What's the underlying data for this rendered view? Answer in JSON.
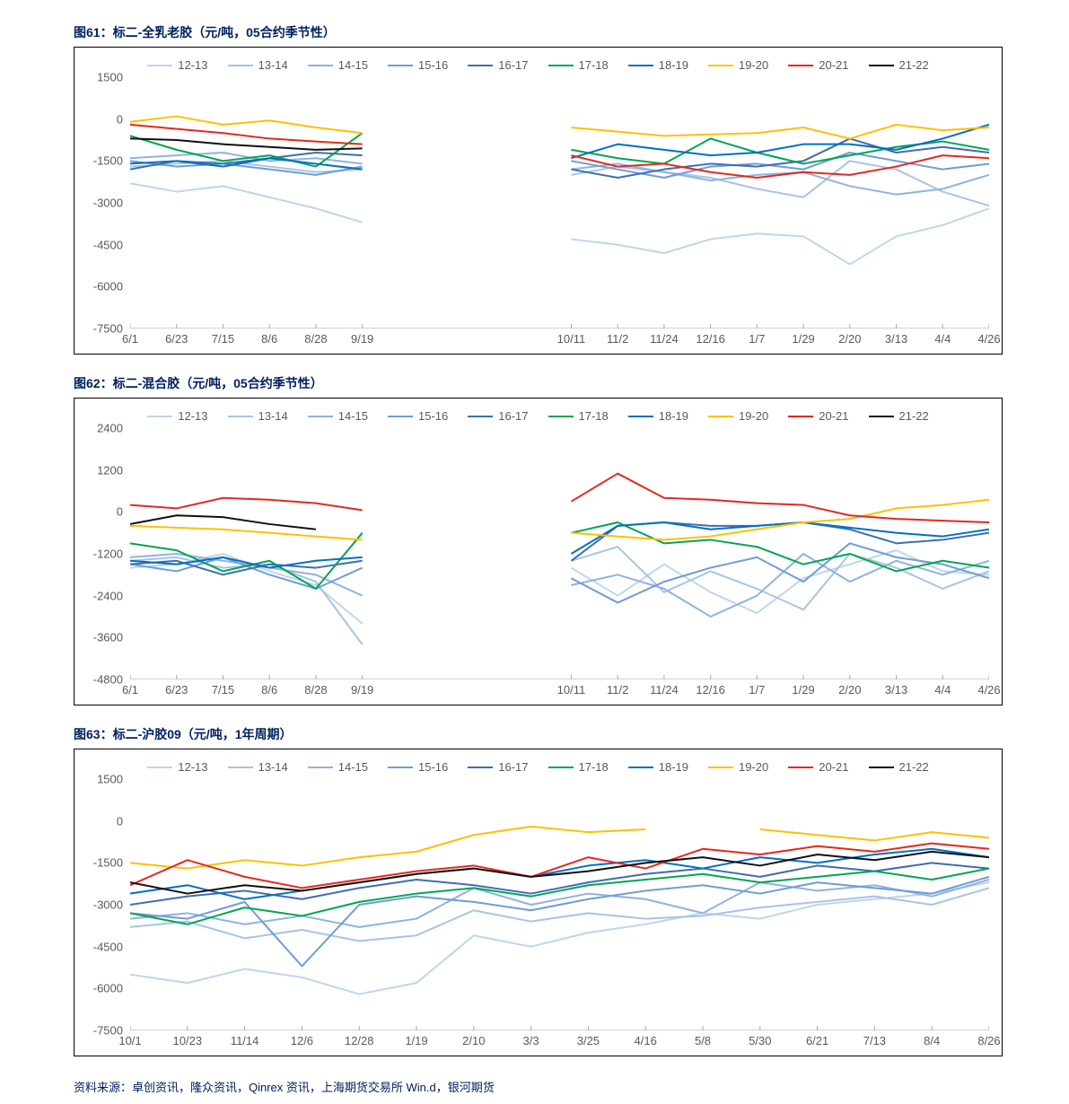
{
  "source_text": "资料来源：卓创资讯，隆众资讯，Qinrex 资讯，上海期货交易所 Win.d，银河期货",
  "legend_series": [
    {
      "label": "12-13",
      "color": "#bfd5ed"
    },
    {
      "label": "13-14",
      "color": "#a7c4e6"
    },
    {
      "label": "14-15",
      "color": "#8fb3df"
    },
    {
      "label": "15-16",
      "color": "#6f9cd6"
    },
    {
      "label": "16-17",
      "color": "#3e6db3"
    },
    {
      "label": "17-18",
      "color": "#00a650"
    },
    {
      "label": "18-19",
      "color": "#0070c0"
    },
    {
      "label": "19-20",
      "color": "#ffc000"
    },
    {
      "label": "20-21",
      "color": "#e6281e"
    },
    {
      "label": "21-22",
      "color": "#111111"
    }
  ],
  "charts": [
    {
      "title": "图61：标二-全乳老胶（元/吨，05合约季节性）",
      "ylim": [
        -7500,
        1500
      ],
      "ytick_step": 1500,
      "x_labels": [
        "6/1",
        "6/23",
        "7/15",
        "8/6",
        "8/28",
        "9/19",
        "10/11",
        "11/2",
        "11/24",
        "12/16",
        "1/7",
        "1/29",
        "2/20",
        "3/13",
        "4/4",
        "4/26"
      ],
      "gap_after_index": 5,
      "series": [
        {
          "color": "#bfd5ed",
          "values": [
            -2300,
            -2600,
            -2400,
            -2800,
            -3200,
            -3700,
            -4300,
            -4500,
            -4800,
            -4300,
            -4100,
            -4200,
            -5200,
            -4200,
            -3800,
            -3200
          ]
        },
        {
          "color": "#a7c4e6",
          "values": [
            -1700,
            -1600,
            -1500,
            -1700,
            -1900,
            -1800,
            -2000,
            -1700,
            -1900,
            -2100,
            -2500,
            -2800,
            -1500,
            -1800,
            -2600,
            -3100
          ]
        },
        {
          "color": "#8fb3df",
          "values": [
            -1400,
            -1300,
            -1200,
            -1500,
            -1400,
            -1600,
            -1800,
            -1600,
            -1900,
            -2200,
            -2000,
            -1900,
            -2400,
            -2700,
            -2500,
            -2000
          ]
        },
        {
          "color": "#6f9cd6",
          "values": [
            -1500,
            -1700,
            -1600,
            -1800,
            -2000,
            -1700,
            -1500,
            -1800,
            -2100,
            -1700,
            -1600,
            -1800,
            -1200,
            -1500,
            -1800,
            -1600
          ]
        },
        {
          "color": "#3e6db3",
          "values": [
            -1800,
            -1500,
            -1600,
            -1400,
            -1200,
            -1300,
            -1800,
            -2100,
            -1800,
            -1600,
            -1700,
            -1500,
            -700,
            -1200,
            -1000,
            -1200
          ]
        },
        {
          "color": "#00a650",
          "values": [
            -600,
            -1100,
            -1500,
            -1300,
            -1700,
            -500,
            -1100,
            -1400,
            -1600,
            -700,
            -1200,
            -1600,
            -1300,
            -1000,
            -800,
            -1100
          ]
        },
        {
          "color": "#0070c0",
          "values": [
            -1600,
            -1500,
            -1700,
            -1400,
            -1600,
            -1800,
            -1400,
            -900,
            -1100,
            -1300,
            -1200,
            -900,
            -900,
            -1100,
            -700,
            -200
          ]
        },
        {
          "color": "#ffc000",
          "values": [
            -100,
            100,
            -200,
            -50,
            -300,
            -500,
            -300,
            -450,
            -600,
            -550,
            -500,
            -300,
            -700,
            -200,
            -400,
            -300
          ]
        },
        {
          "color": "#e6281e",
          "values": [
            -200,
            -350,
            -500,
            -700,
            -800,
            -900,
            -1300,
            -1700,
            -1600,
            -1900,
            -2100,
            -1900,
            -2000,
            -1700,
            -1300,
            -1400
          ]
        },
        {
          "color": "#111111",
          "values": [
            -700,
            -750,
            -900,
            -1000,
            -1100,
            -1050,
            null,
            null,
            null,
            null,
            null,
            null,
            null,
            null,
            null,
            null
          ]
        }
      ]
    },
    {
      "title": "图62：标二-混合胶（元/吨，05合约季节性）",
      "ylim": [
        -4800,
        2400
      ],
      "ytick_step": 1200,
      "x_labels": [
        "6/1",
        "6/23",
        "7/15",
        "8/6",
        "8/28",
        "9/19",
        "10/11",
        "11/2",
        "11/24",
        "12/16",
        "1/7",
        "1/29",
        "2/20",
        "3/13",
        "4/4",
        "4/26"
      ],
      "gap_after_index": 5,
      "series": [
        {
          "color": "#bfd5ed",
          "values": [
            -1600,
            -1500,
            -1200,
            -1700,
            -2100,
            -3200,
            -1600,
            -2400,
            -1500,
            -2300,
            -2900,
            -1900,
            -1500,
            -1100,
            -1700,
            -1800
          ]
        },
        {
          "color": "#a7c4e6",
          "values": [
            -1400,
            -1300,
            -1600,
            -1500,
            -2000,
            -3800,
            -1400,
            -1000,
            -2300,
            -1700,
            -2200,
            -2800,
            -1200,
            -1600,
            -2200,
            -1700
          ]
        },
        {
          "color": "#8fb3df",
          "values": [
            -1300,
            -1200,
            -1400,
            -1600,
            -1800,
            -2400,
            -2100,
            -1800,
            -2200,
            -3000,
            -2400,
            -1200,
            -2000,
            -1400,
            -1800,
            -1400
          ]
        },
        {
          "color": "#6f9cd6",
          "values": [
            -1500,
            -1700,
            -1300,
            -1800,
            -2200,
            -1600,
            -1900,
            -2600,
            -2000,
            -1600,
            -1300,
            -2000,
            -900,
            -1300,
            -1500,
            -1900
          ]
        },
        {
          "color": "#3e6db3",
          "values": [
            -1500,
            -1400,
            -1800,
            -1500,
            -1600,
            -1400,
            -1400,
            -400,
            -300,
            -400,
            -400,
            -300,
            -500,
            -900,
            -800,
            -600
          ]
        },
        {
          "color": "#00a650",
          "values": [
            -900,
            -1100,
            -1700,
            -1400,
            -2200,
            -600,
            -600,
            -300,
            -900,
            -800,
            -1000,
            -1500,
            -1200,
            -1700,
            -1400,
            -1600
          ]
        },
        {
          "color": "#0070c0",
          "values": [
            -1400,
            -1500,
            -1300,
            -1600,
            -1400,
            -1300,
            -1200,
            -400,
            -300,
            -500,
            -400,
            -300,
            -450,
            -600,
            -700,
            -500
          ]
        },
        {
          "color": "#ffc000",
          "values": [
            -400,
            -450,
            -500,
            -600,
            -700,
            -800,
            -600,
            -700,
            -800,
            -700,
            -500,
            -300,
            -200,
            100,
            200,
            350
          ]
        },
        {
          "color": "#e6281e",
          "values": [
            200,
            100,
            400,
            350,
            250,
            50,
            300,
            1100,
            400,
            350,
            250,
            200,
            -100,
            -200,
            -250,
            -300
          ]
        },
        {
          "color": "#111111",
          "values": [
            -350,
            -100,
            -150,
            -350,
            -500,
            null,
            null,
            null,
            null,
            null,
            null,
            null,
            null,
            null,
            null,
            null
          ]
        }
      ]
    },
    {
      "title": "图63：标二-沪胶09（元/吨，1年周期）",
      "ylim": [
        -7500,
        1500
      ],
      "ytick_step": 1500,
      "x_labels": [
        "10/1",
        "10/23",
        "11/14",
        "12/6",
        "12/28",
        "1/19",
        "2/10",
        "3/3",
        "3/25",
        "4/16",
        "5/8",
        "5/30",
        "6/21",
        "7/13",
        "8/4",
        "8/26"
      ],
      "gap_after_index": null,
      "series": [
        {
          "color": "#bfd5ed",
          "values": [
            -5500,
            -5800,
            -5300,
            -5600,
            -6200,
            -5800,
            -4100,
            -4500,
            -4000,
            -3700,
            -3300,
            -3500,
            -3000,
            -2800,
            -2600,
            -2200
          ]
        },
        {
          "color": "#a7c4e6",
          "values": [
            -3800,
            -3600,
            -4200,
            -3900,
            -4300,
            -4100,
            -3200,
            -3600,
            -3300,
            -3500,
            -3400,
            -3100,
            -2900,
            -2700,
            -3000,
            -2400
          ]
        },
        {
          "color": "#8fb3df",
          "values": [
            -3500,
            -3300,
            -3700,
            -3400,
            -3800,
            -3500,
            -2400,
            -3000,
            -2600,
            -2800,
            -3300,
            -2200,
            -2500,
            -2300,
            -2700,
            -2100
          ]
        },
        {
          "color": "#6f9cd6",
          "values": [
            -3300,
            -3500,
            -2900,
            -5200,
            -3000,
            -2700,
            -2900,
            -3200,
            -2800,
            -2500,
            -2300,
            -2600,
            -2200,
            -2400,
            -2600,
            -2000
          ]
        },
        {
          "color": "#3e6db3",
          "values": [
            -3000,
            -2700,
            -2500,
            -2800,
            -2400,
            -2100,
            -2300,
            -2600,
            -2200,
            -1900,
            -1700,
            -2000,
            -1600,
            -1800,
            -1500,
            -1700
          ]
        },
        {
          "color": "#00a650",
          "values": [
            -3300,
            -3700,
            -3100,
            -3400,
            -2900,
            -2600,
            -2400,
            -2700,
            -2300,
            -2100,
            -1900,
            -2200,
            -2000,
            -1800,
            -2100,
            -1700
          ]
        },
        {
          "color": "#0070c0",
          "values": [
            -2600,
            -2300,
            -2800,
            -2500,
            -2200,
            -1900,
            -1700,
            -2000,
            -1600,
            -1400,
            -1700,
            -1300,
            -1500,
            -1200,
            -1000,
            -1300
          ]
        },
        {
          "color": "#ffc000",
          "values": [
            -1500,
            -1700,
            -1400,
            -1600,
            -1300,
            -1100,
            -500,
            -200,
            -400,
            -300,
            null,
            -300,
            -500,
            -700,
            -400,
            -600
          ]
        },
        {
          "color": "#e6281e",
          "values": [
            -2300,
            -1400,
            -2000,
            -2400,
            -2100,
            -1800,
            -1600,
            -2000,
            -1300,
            -1700,
            -1000,
            -1200,
            -900,
            -1100,
            -800,
            -1000
          ]
        },
        {
          "color": "#111111",
          "values": [
            -2200,
            -2600,
            -2300,
            -2500,
            -2200,
            -1900,
            -1700,
            -2000,
            -1800,
            -1500,
            -1300,
            -1600,
            -1200,
            -1400,
            -1100,
            -1300
          ]
        }
      ]
    }
  ]
}
